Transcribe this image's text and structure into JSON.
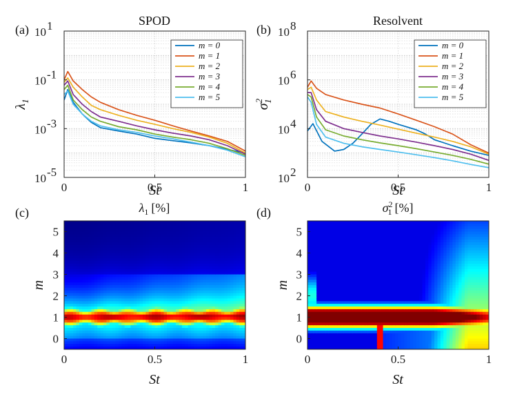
{
  "colors": [
    "#0072BD",
    "#D95319",
    "#EDB120",
    "#7E2F8E",
    "#77AC30",
    "#4DBEEE"
  ],
  "chart_data": [
    {
      "id": "a",
      "panel_label": "(a)",
      "type": "line",
      "yscale": "log",
      "title": "SPOD",
      "xlabel": "St",
      "ylabel": "λ",
      "ylabel_sub": "1",
      "xlim": [
        0,
        1
      ],
      "ylim": [
        1e-05,
        10
      ],
      "xticks": [
        0,
        0.5,
        1
      ],
      "xtick_labels": [
        "0",
        "0.5",
        "1"
      ],
      "yticks": [
        1e-05,
        0.001,
        0.1,
        10
      ],
      "ytick_labels": [
        {
          "base": "10",
          "exp": "-5"
        },
        {
          "base": "10",
          "exp": "-3"
        },
        {
          "base": "10",
          "exp": "-1"
        },
        {
          "base": "10",
          "exp": "1"
        }
      ],
      "grid": true,
      "legend_position": "top-right",
      "series": [
        {
          "name": "m = 0",
          "x": [
            0,
            0.02,
            0.05,
            0.1,
            0.15,
            0.2,
            0.3,
            0.4,
            0.5,
            0.6,
            0.7,
            0.8,
            0.9,
            1.0
          ],
          "values": [
            0.015,
            0.04,
            0.012,
            0.004,
            0.0018,
            0.0011,
            0.0008,
            0.0006,
            0.0004,
            0.00032,
            0.00026,
            0.0002,
            0.00014,
            0.0001
          ]
        },
        {
          "name": "m = 1",
          "x": [
            0,
            0.02,
            0.05,
            0.1,
            0.15,
            0.2,
            0.3,
            0.4,
            0.5,
            0.6,
            0.7,
            0.8,
            0.9,
            1.0
          ],
          "values": [
            0.1,
            0.22,
            0.09,
            0.04,
            0.02,
            0.012,
            0.006,
            0.0035,
            0.0022,
            0.0013,
            0.0008,
            0.0005,
            0.0003,
            0.00012
          ]
        },
        {
          "name": "m = 2",
          "x": [
            0,
            0.02,
            0.05,
            0.1,
            0.15,
            0.2,
            0.3,
            0.4,
            0.5,
            0.6,
            0.7,
            0.8,
            0.9,
            1.0
          ],
          "values": [
            0.08,
            0.12,
            0.05,
            0.02,
            0.009,
            0.006,
            0.0035,
            0.0022,
            0.0015,
            0.001,
            0.0007,
            0.00045,
            0.00025,
            0.0001
          ]
        },
        {
          "name": "m = 3",
          "x": [
            0,
            0.02,
            0.05,
            0.1,
            0.15,
            0.2,
            0.3,
            0.4,
            0.5,
            0.6,
            0.7,
            0.8,
            0.9,
            1.0
          ],
          "values": [
            0.06,
            0.09,
            0.025,
            0.01,
            0.005,
            0.003,
            0.002,
            0.0013,
            0.0009,
            0.00065,
            0.0005,
            0.00035,
            0.0002,
            9e-05
          ]
        },
        {
          "name": "m = 4",
          "x": [
            0,
            0.02,
            0.05,
            0.1,
            0.15,
            0.2,
            0.3,
            0.4,
            0.5,
            0.6,
            0.7,
            0.8,
            0.9,
            1.0
          ],
          "values": [
            0.04,
            0.06,
            0.015,
            0.006,
            0.003,
            0.002,
            0.0012,
            0.0009,
            0.0006,
            0.00045,
            0.00035,
            0.00025,
            0.00015,
            8e-05
          ]
        },
        {
          "name": "m = 5",
          "x": [
            0,
            0.02,
            0.05,
            0.1,
            0.15,
            0.2,
            0.3,
            0.4,
            0.5,
            0.6,
            0.7,
            0.8,
            0.9,
            1.0
          ],
          "values": [
            0.025,
            0.035,
            0.01,
            0.004,
            0.002,
            0.0013,
            0.0009,
            0.0007,
            0.0005,
            0.00038,
            0.00028,
            0.0002,
            0.00013,
            7e-05
          ]
        }
      ]
    },
    {
      "id": "b",
      "panel_label": "(b)",
      "type": "line",
      "yscale": "log",
      "title": "Resolvent",
      "xlabel": "St",
      "ylabel": "σ",
      "ylabel_sub": "1",
      "ylabel_sup": "2",
      "xlim": [
        0,
        1
      ],
      "ylim": [
        100,
        100000000.0
      ],
      "xticks": [
        0,
        0.5,
        1
      ],
      "xtick_labels": [
        "0",
        "0.5",
        "1"
      ],
      "yticks": [
        100,
        10000.0,
        1000000.0,
        100000000.0
      ],
      "ytick_labels": [
        {
          "base": "10",
          "exp": "2"
        },
        {
          "base": "10",
          "exp": "4"
        },
        {
          "base": "10",
          "exp": "6"
        },
        {
          "base": "10",
          "exp": "8"
        }
      ],
      "grid": true,
      "legend_position": "top-right",
      "series": [
        {
          "name": "m = 0",
          "x": [
            0,
            0.03,
            0.08,
            0.15,
            0.2,
            0.25,
            0.3,
            0.35,
            0.4,
            0.45,
            0.5,
            0.6,
            0.65,
            0.7,
            0.8,
            0.9,
            1.0
          ],
          "values": [
            8000,
            16000,
            3000,
            1200,
            1400,
            2500,
            6000,
            15000,
            25000,
            20000,
            15000,
            9000,
            6000,
            3500,
            2000,
            1200,
            800
          ]
        },
        {
          "name": "m = 1",
          "x": [
            0,
            0.02,
            0.05,
            0.1,
            0.2,
            0.3,
            0.4,
            0.5,
            0.6,
            0.7,
            0.8,
            0.9,
            1.0
          ],
          "values": [
            500000,
            900000,
            450000,
            250000,
            150000,
            100000,
            70000,
            40000,
            22000,
            12000,
            6000,
            2200,
            1000
          ]
        },
        {
          "name": "m = 2",
          "x": [
            0,
            0.02,
            0.05,
            0.1,
            0.2,
            0.3,
            0.4,
            0.5,
            0.6,
            0.7,
            0.8,
            0.9,
            1.0
          ],
          "values": [
            400000,
            500000,
            150000,
            50000,
            30000,
            20000,
            14000,
            9500,
            6500,
            4500,
            3000,
            1800,
            900
          ]
        },
        {
          "name": "m = 3",
          "x": [
            0,
            0.02,
            0.05,
            0.1,
            0.2,
            0.3,
            0.4,
            0.5,
            0.6,
            0.7,
            0.8,
            0.9,
            1.0
          ],
          "values": [
            300000,
            300000,
            60000,
            20000,
            10000,
            7000,
            5000,
            3800,
            2800,
            2000,
            1400,
            900,
            500
          ]
        },
        {
          "name": "m = 4",
          "x": [
            0,
            0.02,
            0.05,
            0.1,
            0.2,
            0.3,
            0.4,
            0.5,
            0.6,
            0.7,
            0.8,
            0.9,
            1.0
          ],
          "values": [
            250000,
            200000,
            30000,
            9000,
            5000,
            3500,
            2600,
            2000,
            1500,
            1100,
            800,
            550,
            350
          ]
        },
        {
          "name": "m = 5",
          "x": [
            0,
            0.02,
            0.05,
            0.1,
            0.2,
            0.3,
            0.4,
            0.5,
            0.6,
            0.7,
            0.8,
            0.9,
            1.0
          ],
          "values": [
            200000,
            120000,
            15000,
            4500,
            2500,
            1800,
            1400,
            1100,
            850,
            650,
            480,
            340,
            250
          ]
        }
      ]
    },
    {
      "id": "c",
      "panel_label": "(c)",
      "type": "heatmap",
      "title_symbol": "λ",
      "title_sub": "1",
      "title_rest": "[%]",
      "xlabel": "St",
      "ylabel": "m",
      "xlim": [
        0,
        1
      ],
      "ylim": [
        -0.5,
        5.5
      ],
      "xticks": [
        0,
        0.5,
        1
      ],
      "xtick_labels": [
        "0",
        "0.5",
        "1"
      ],
      "yticks": [
        0,
        1,
        2,
        3,
        4,
        5
      ],
      "ytick_labels": [
        "0",
        "1",
        "2",
        "3",
        "4",
        "5"
      ],
      "colormap": "jet",
      "m_levels": [
        0,
        1,
        2,
        3,
        4,
        5
      ],
      "percent_by_m": [
        8,
        72,
        12,
        4,
        2.5,
        1.5
      ]
    },
    {
      "id": "d",
      "panel_label": "(d)",
      "type": "heatmap",
      "title_symbol": "σ",
      "title_sub": "1",
      "title_sup": "2",
      "title_rest": "[%]",
      "xlabel": "St",
      "ylabel": "m",
      "xlim": [
        0,
        1
      ],
      "ylim": [
        -0.5,
        5.5
      ],
      "xticks": [
        0,
        0.5,
        1
      ],
      "xtick_labels": [
        "0",
        "0.5",
        "1"
      ],
      "yticks": [
        0,
        1,
        2,
        3,
        4,
        5
      ],
      "ytick_labels": [
        "0",
        "1",
        "2",
        "3",
        "4",
        "5"
      ],
      "colormap": "jet",
      "m_levels": [
        0,
        1,
        2,
        3,
        4,
        5
      ],
      "percent_by_m": [
        3,
        97,
        2,
        0.5,
        0.2,
        0.1
      ]
    }
  ]
}
